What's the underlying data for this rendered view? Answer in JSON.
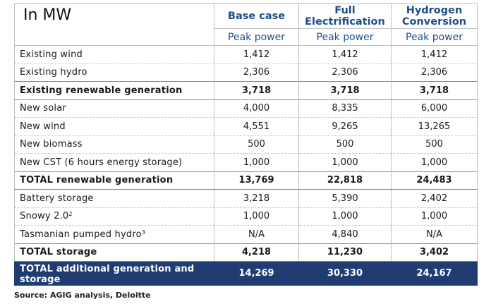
{
  "table": {
    "unit_label": "In MW",
    "columns": [
      {
        "title": "Base case",
        "subtitle": "Peak power"
      },
      {
        "title": "Full Electrification",
        "subtitle": "Peak power"
      },
      {
        "title": "Hydrogen Conversion",
        "subtitle": "Peak power"
      }
    ],
    "rows": [
      {
        "label": "Existing wind",
        "sup": "",
        "values": [
          "1,412",
          "1,412",
          "1,412"
        ],
        "style": "normal"
      },
      {
        "label": "Existing hydro",
        "sup": "",
        "values": [
          "2,306",
          "2,306",
          "2,306"
        ],
        "style": "normal"
      },
      {
        "label": "Existing renewable generation",
        "sup": "",
        "values": [
          "3,718",
          "3,718",
          "3,718"
        ],
        "style": "total"
      },
      {
        "label": "New solar",
        "sup": "",
        "values": [
          "4,000",
          "8,335",
          "6,000"
        ],
        "style": "normal"
      },
      {
        "label": "New wind",
        "sup": "",
        "values": [
          "4,551",
          "9,265",
          "13,265"
        ],
        "style": "normal"
      },
      {
        "label": "New biomass",
        "sup": "",
        "values": [
          "500",
          "500",
          "500"
        ],
        "style": "normal"
      },
      {
        "label": "New CST (6 hours energy storage)",
        "sup": "",
        "values": [
          "1,000",
          "1,000",
          "1,000"
        ],
        "style": "normal"
      },
      {
        "label": "TOTAL renewable generation",
        "sup": "",
        "values": [
          "13,769",
          "22,818",
          "24,483"
        ],
        "style": "total"
      },
      {
        "label": "Battery storage",
        "sup": "",
        "values": [
          "3,218",
          "5,390",
          "2,402"
        ],
        "style": "normal"
      },
      {
        "label": "Snowy 2.0",
        "sup": "2",
        "values": [
          "1,000",
          "1,000",
          "1,000"
        ],
        "style": "normal"
      },
      {
        "label": "Tasmanian pumped hydro",
        "sup": "3",
        "values": [
          "N/A",
          "4,840",
          "N/A"
        ],
        "style": "normal"
      },
      {
        "label": "TOTAL storage",
        "sup": "",
        "values": [
          "4,218",
          "11,230",
          "3,402"
        ],
        "style": "total"
      },
      {
        "label": "TOTAL additional generation and storage",
        "sup": "",
        "values": [
          "14,269",
          "30,330",
          "24,167"
        ],
        "style": "grand"
      }
    ]
  },
  "source": "Source: AGIG analysis, Deloitte",
  "colors": {
    "header_text": "#1f4e8c",
    "grand_total_bg": "#1f3d73",
    "border": "#bfbfbf"
  }
}
